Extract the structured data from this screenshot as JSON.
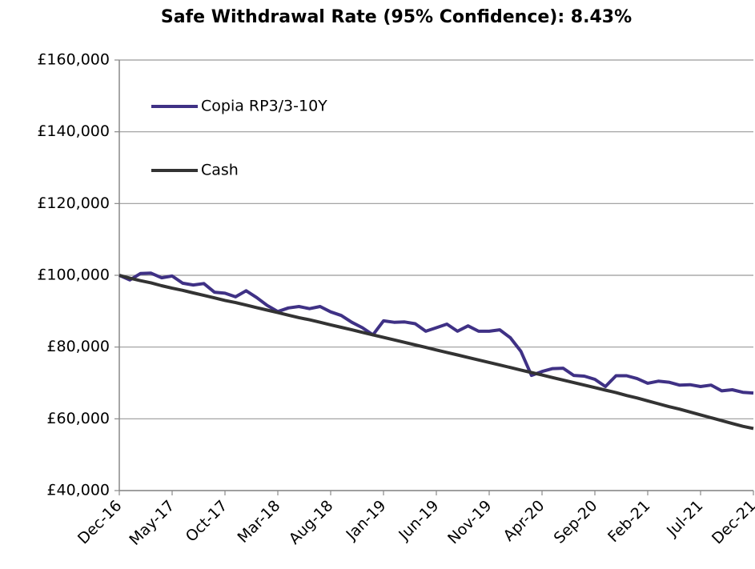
{
  "chart_data": {
    "type": "line",
    "title": "Safe Withdrawal Rate (95% Confidence): 8.43%",
    "categories": [
      "Dec-16",
      null,
      null,
      null,
      null,
      "May-17",
      null,
      null,
      null,
      null,
      "Oct-17",
      null,
      null,
      null,
      null,
      "Mar-18",
      null,
      null,
      null,
      null,
      "Aug-18",
      null,
      null,
      null,
      null,
      "Jan-19",
      null,
      null,
      null,
      null,
      "Jun-19",
      null,
      null,
      null,
      null,
      "Nov-19",
      null,
      null,
      null,
      null,
      "Apr-20",
      null,
      null,
      null,
      null,
      "Sep-20",
      null,
      null,
      null,
      null,
      "Feb-21",
      null,
      null,
      null,
      null,
      "Jul-21",
      null,
      null,
      null,
      null,
      "Dec-21"
    ],
    "series": [
      {
        "name": "Copia RP3/3-10Y",
        "color": "#3f3185",
        "values": [
          100000,
          98700,
          100500,
          100600,
          99300,
          99800,
          97800,
          97300,
          97700,
          95300,
          95000,
          94000,
          95700,
          93800,
          91600,
          89900,
          90900,
          91300,
          90700,
          91300,
          89800,
          88800,
          86900,
          85400,
          83400,
          87300,
          86900,
          87000,
          86500,
          84400,
          85400,
          86400,
          84400,
          85900,
          84400,
          84400,
          84800,
          82600,
          78800,
          72100,
          73200,
          74000,
          74100,
          72100,
          71900,
          71000,
          69000,
          72000,
          72000,
          71200,
          69900,
          70500,
          70200,
          69400,
          69500,
          69000,
          69400,
          67800,
          68100,
          67400,
          67200
        ]
      },
      {
        "name": "Cash",
        "color": "#333333",
        "values": [
          100000,
          99200,
          98500,
          97900,
          97100,
          96400,
          95800,
          95100,
          94400,
          93700,
          93000,
          92400,
          91700,
          91000,
          90300,
          89600,
          88900,
          88200,
          87600,
          86900,
          86200,
          85500,
          84800,
          84100,
          83400,
          82700,
          82000,
          81300,
          80600,
          79900,
          79200,
          78500,
          77800,
          77100,
          76400,
          75700,
          75000,
          74300,
          73600,
          72900,
          72200,
          71500,
          70800,
          70100,
          69400,
          68700,
          68000,
          67300,
          66500,
          65800,
          65000,
          64200,
          63400,
          62700,
          61900,
          61100,
          60300,
          59500,
          58700,
          57900,
          57300
        ]
      }
    ],
    "ylim": [
      40000,
      160000
    ],
    "yticks": [
      {
        "value": 40000,
        "label": "£40,000"
      },
      {
        "value": 60000,
        "label": "£60,000"
      },
      {
        "value": 80000,
        "label": "£80,000"
      },
      {
        "value": 100000,
        "label": "£100,000"
      },
      {
        "value": 120000,
        "label": "£120,000"
      },
      {
        "value": 140000,
        "label": "£140,000"
      },
      {
        "value": 160000,
        "label": "£160,000"
      }
    ],
    "grid": true,
    "legend": "upper left"
  }
}
